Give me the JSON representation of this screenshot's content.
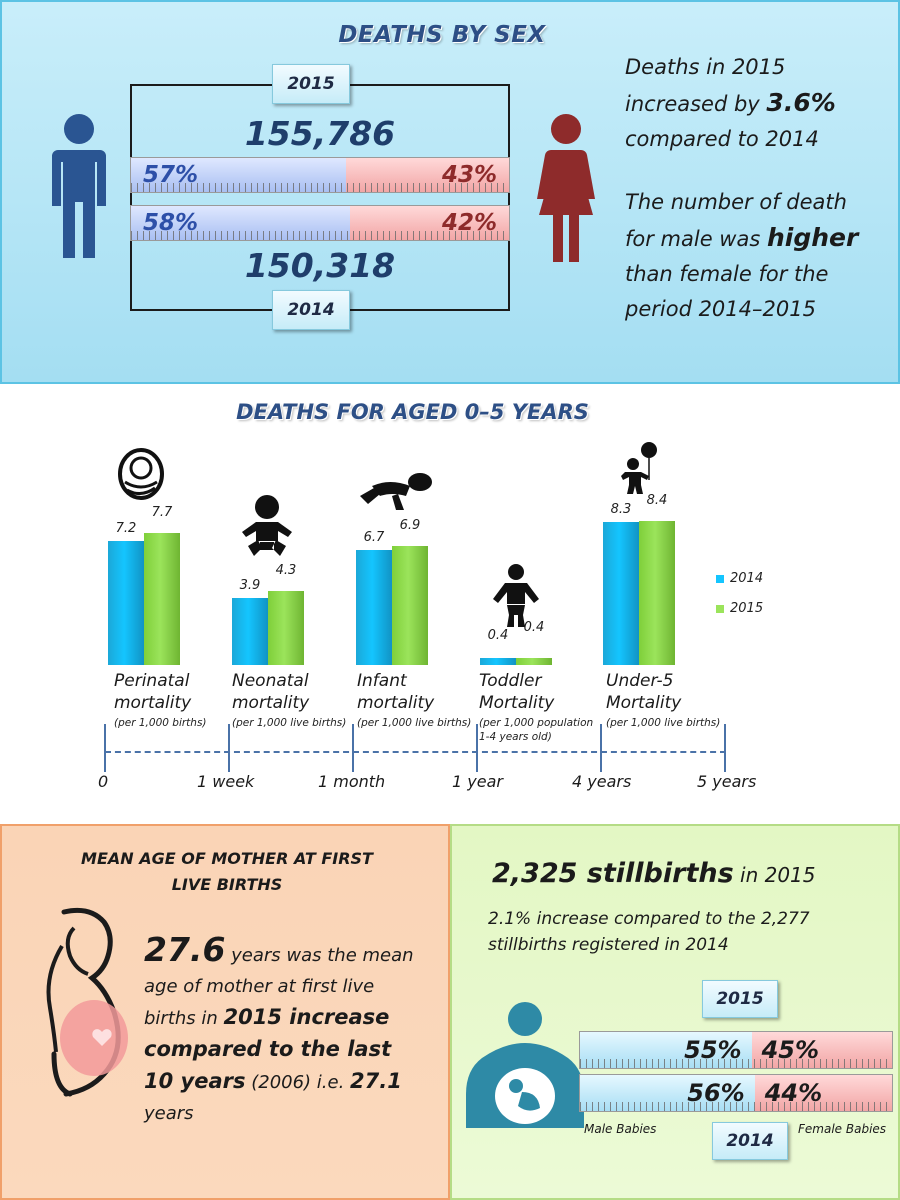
{
  "deaths_by_sex": {
    "title": "DEATHS BY SEX",
    "year_top": "2015",
    "year_bottom": "2014",
    "total_2015": "155,786",
    "total_2014": "150,318",
    "male_pct_2015": 57,
    "female_pct_2015": 43,
    "male_pct_2014": 58,
    "female_pct_2014": 42,
    "male_label_2015": "57%",
    "female_label_2015": "43%",
    "male_label_2014": "58%",
    "female_label_2014": "42%",
    "text_line1a": "Deaths in 2015",
    "text_line1b": "increased by ",
    "text_increase": "3.6%",
    "text_line1c": "compared to 2014",
    "text_line2a": "The number of death",
    "text_line2b": "for male was ",
    "text_higher": "higher",
    "text_line2c": "than female for the",
    "text_line2d": "period 2014–2015"
  },
  "chart_data": {
    "type": "bar",
    "title": "DEATHS FOR AGED 0–5 YEARS",
    "categories": [
      "Perinatal mortality",
      "Neonatal mortality",
      "Infant mortality",
      "Toddler Mortality",
      "Under-5 Mortality"
    ],
    "category_lines": [
      [
        "Perinatal",
        "mortality"
      ],
      [
        "Neonatal",
        "mortality"
      ],
      [
        "Infant",
        "mortality"
      ],
      [
        "Toddler",
        "Mortality"
      ],
      [
        "Under-5",
        "Mortality"
      ]
    ],
    "category_notes": [
      [
        "(per 1,000 births)"
      ],
      [
        "(per 1,000 live births)"
      ],
      [
        "(per 1,000 live births)"
      ],
      [
        "(per 1,000 population",
        "1-4 years old)"
      ],
      [
        "(per 1,000 live births)"
      ]
    ],
    "series": [
      {
        "name": "2014",
        "values": [
          7.2,
          3.9,
          6.7,
          0.4,
          8.3
        ],
        "color": "#14c5ff"
      },
      {
        "name": "2015",
        "values": [
          7.7,
          4.3,
          6.9,
          0.4,
          8.4
        ],
        "color": "#9be45b"
      }
    ],
    "value_labels": [
      [
        "7.2",
        "3.9",
        "6.7",
        "0.4",
        "8.3"
      ],
      [
        "7.7",
        "4.3",
        "6.9",
        "0.4",
        "8.4"
      ]
    ],
    "age_axis": [
      "0",
      "1 week",
      "1 month",
      "1 year",
      "4 years",
      "5 years"
    ],
    "legend_placement": "right",
    "grid": false
  },
  "mother_age": {
    "title_line1": "MEAN AGE OF MOTHER AT FIRST",
    "title_line2": "LIVE BIRTHS",
    "mean_age": "27.6",
    "t1": " years was the mean age of mother at first live births in ",
    "t2": "2015 increase compared to the last 10 years",
    "t3": " (2006) i.e. ",
    "prev_age": "27.1",
    "t4": " years"
  },
  "stillbirths": {
    "count": "2,325 stillbirths",
    "count_suffix": " in 2015",
    "sub_line1": "2.1% increase compared to the 2,277",
    "sub_line2": "stillbirths registered in 2014",
    "year_top": "2015",
    "year_bottom": "2014",
    "male_pct_2015": 55,
    "female_pct_2015": 45,
    "male_pct_2014": 56,
    "female_pct_2014": 44,
    "male_label_2015": "55%",
    "female_label_2015": "45%",
    "male_label_2014": "56%",
    "female_label_2014": "44%",
    "male_caption": "Male Babies",
    "female_caption": "Female Babies"
  },
  "colors": {
    "title_blue": "#2d4f86",
    "male_figure": "#2a5592",
    "female_figure": "#8e2b2b",
    "male_text": "#2d4fa8",
    "female_text": "#8e2b2b",
    "pregnant_pink": "#f29a9a"
  }
}
